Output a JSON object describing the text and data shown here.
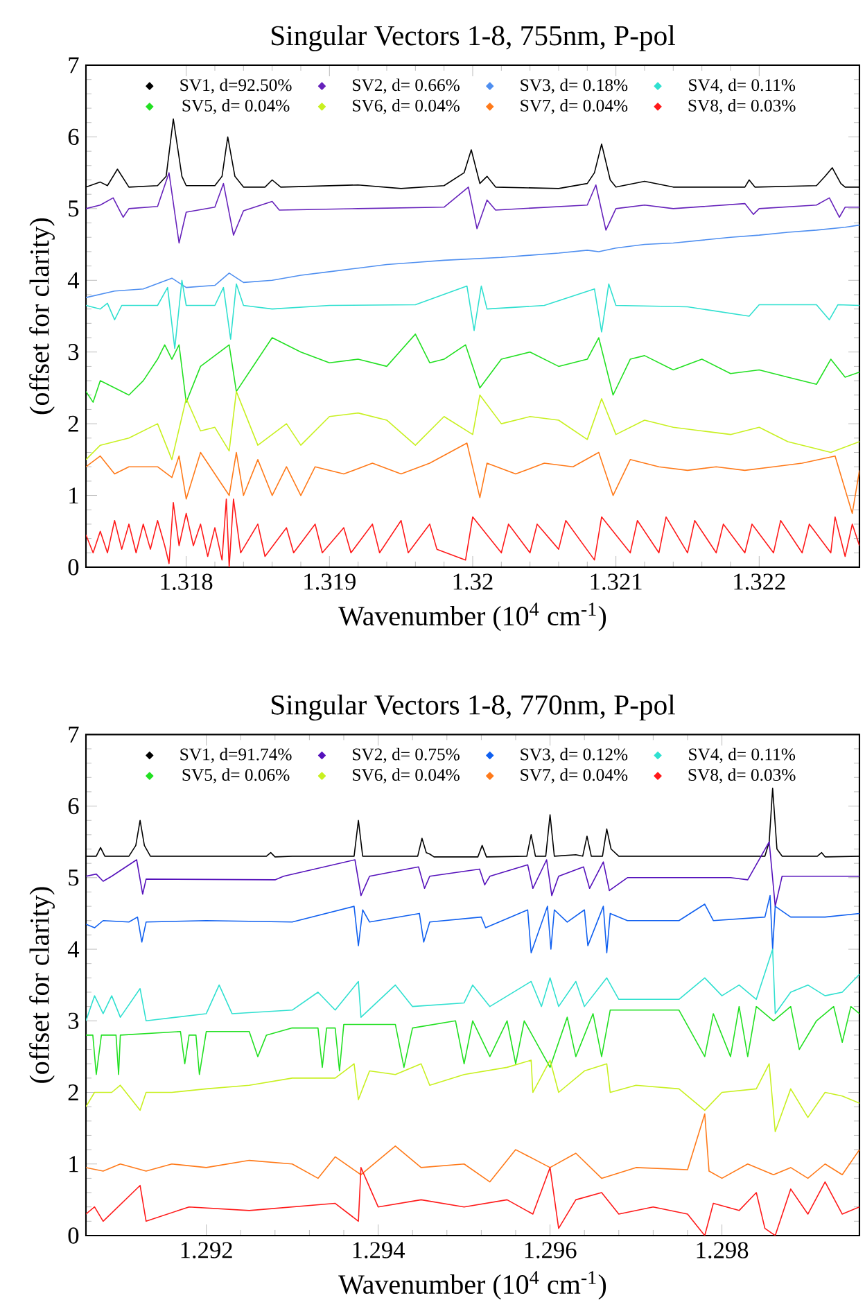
{
  "chart_data": [
    {
      "type": "line",
      "title": "Singular Vectors 1-8, 755nm, P-pol",
      "xlabel": "Wavenumber (10$^{4}$ cm$^{-1}$)",
      "ylabel": "(offset for clarity)",
      "xlim": [
        1.3173,
        1.3227
      ],
      "ylim": [
        0,
        7
      ],
      "xticks": [
        1.318,
        1.319,
        1.32,
        1.321,
        1.322
      ],
      "yticks": [
        0,
        1,
        2,
        3,
        4,
        5,
        6,
        7
      ],
      "legend": "top",
      "series": [
        {
          "name": "SV1, d=92.50%",
          "color": "#000000",
          "x": [
            1.3173,
            1.3174,
            1.31745,
            1.31752,
            1.3176,
            1.3178,
            1.31786,
            1.31791,
            1.31797,
            1.318,
            1.3182,
            1.31825,
            1.31829,
            1.31834,
            1.3184,
            1.31855,
            1.3186,
            1.31866,
            1.3192,
            1.3195,
            1.3198,
            1.31994,
            1.31999,
            1.32005,
            1.3201,
            1.32016,
            1.3206,
            1.3208,
            1.32085,
            1.3209,
            1.32096,
            1.321,
            1.3212,
            1.3214,
            1.3219,
            1.32193,
            1.32197,
            1.3224,
            1.32246,
            1.32251,
            1.32257,
            1.3226,
            1.3227
          ],
          "values": [
            5.3,
            5.37,
            5.32,
            5.55,
            5.3,
            5.32,
            5.45,
            6.25,
            5.45,
            5.32,
            5.32,
            5.45,
            6.0,
            5.45,
            5.3,
            5.3,
            5.4,
            5.3,
            5.33,
            5.28,
            5.32,
            5.5,
            5.82,
            5.35,
            5.45,
            5.3,
            5.28,
            5.35,
            5.5,
            5.9,
            5.4,
            5.3,
            5.38,
            5.3,
            5.3,
            5.4,
            5.3,
            5.32,
            5.45,
            5.57,
            5.35,
            5.3,
            5.3
          ]
        },
        {
          "name": "SV2, d= 0.66%",
          "color": "#6622bb",
          "x": [
            1.3173,
            1.3174,
            1.31749,
            1.31756,
            1.3176,
            1.3178,
            1.31788,
            1.31795,
            1.318,
            1.3182,
            1.31826,
            1.31833,
            1.3184,
            1.3186,
            1.31865,
            1.3192,
            1.3198,
            1.31997,
            1.32003,
            1.3201,
            1.32016,
            1.3208,
            1.32086,
            1.32093,
            1.321,
            1.3212,
            1.3214,
            1.3219,
            1.32196,
            1.322,
            1.3224,
            1.32249,
            1.32256,
            1.3226,
            1.3227
          ],
          "values": [
            5.0,
            5.05,
            5.15,
            4.88,
            5.0,
            5.03,
            5.5,
            4.52,
            4.95,
            5.02,
            5.35,
            4.63,
            4.97,
            5.1,
            4.98,
            5.0,
            5.02,
            5.3,
            4.72,
            5.12,
            4.98,
            5.05,
            5.33,
            4.7,
            5.0,
            5.05,
            5.0,
            5.07,
            4.92,
            5.0,
            5.05,
            5.15,
            4.88,
            5.02,
            5.02
          ]
        },
        {
          "name": "SV3, d= 0.18%",
          "color": "#4f8ff0",
          "x": [
            1.3173,
            1.3175,
            1.3177,
            1.3179,
            1.318,
            1.3182,
            1.3183,
            1.3184,
            1.3186,
            1.3188,
            1.319,
            1.3192,
            1.3194,
            1.3196,
            1.3198,
            1.32,
            1.3202,
            1.3204,
            1.3206,
            1.3208,
            1.32088,
            1.321,
            1.3212,
            1.3214,
            1.3216,
            1.3218,
            1.322,
            1.3222,
            1.3224,
            1.3226,
            1.3227
          ],
          "values": [
            3.76,
            3.85,
            3.88,
            4.03,
            3.9,
            3.93,
            4.1,
            3.97,
            4.0,
            4.07,
            4.12,
            4.17,
            4.22,
            4.25,
            4.28,
            4.3,
            4.32,
            4.35,
            4.38,
            4.42,
            4.4,
            4.45,
            4.5,
            4.52,
            4.56,
            4.6,
            4.63,
            4.67,
            4.7,
            4.74,
            4.77
          ]
        },
        {
          "name": "SV4, d= 0.11%",
          "color": "#30e0d0",
          "x": [
            1.3173,
            1.3174,
            1.31745,
            1.3175,
            1.31755,
            1.3178,
            1.31787,
            1.31792,
            1.31797,
            1.318,
            1.3182,
            1.31826,
            1.31831,
            1.31835,
            1.3184,
            1.3186,
            1.319,
            1.3196,
            1.31996,
            1.32001,
            1.32006,
            1.3201,
            1.3205,
            1.32085,
            1.3209,
            1.32095,
            1.321,
            1.3215,
            1.32193,
            1.322,
            1.3224,
            1.32249,
            1.32255,
            1.3227
          ],
          "values": [
            3.65,
            3.6,
            3.68,
            3.45,
            3.65,
            3.65,
            3.9,
            3.05,
            4.0,
            3.65,
            3.65,
            3.9,
            3.18,
            3.95,
            3.65,
            3.6,
            3.65,
            3.66,
            3.92,
            3.3,
            3.92,
            3.6,
            3.65,
            3.88,
            3.28,
            3.95,
            3.65,
            3.63,
            3.5,
            3.66,
            3.66,
            3.45,
            3.66,
            3.65
          ]
        },
        {
          "name": "SV5, d= 0.04%",
          "color": "#22e022",
          "x": [
            1.3173,
            1.31735,
            1.3174,
            1.3176,
            1.3177,
            1.3178,
            1.31785,
            1.3179,
            1.31795,
            1.318,
            1.3181,
            1.3182,
            1.3183,
            1.31835,
            1.3185,
            1.3186,
            1.3188,
            1.319,
            1.3192,
            1.3194,
            1.3196,
            1.3197,
            1.3198,
            1.31995,
            1.32005,
            1.3202,
            1.3204,
            1.3206,
            1.3208,
            1.32088,
            1.32098,
            1.3211,
            1.3212,
            1.3214,
            1.3216,
            1.3218,
            1.322,
            1.3222,
            1.3224,
            1.3225,
            1.3226,
            1.3227
          ],
          "values": [
            2.45,
            2.3,
            2.6,
            2.4,
            2.6,
            2.9,
            3.1,
            2.9,
            3.1,
            2.3,
            2.8,
            2.95,
            3.1,
            2.45,
            2.9,
            3.2,
            3.0,
            2.85,
            2.9,
            2.8,
            3.25,
            2.85,
            2.9,
            3.1,
            2.5,
            2.9,
            3.0,
            2.8,
            2.9,
            3.2,
            2.4,
            2.9,
            2.95,
            2.75,
            2.9,
            2.7,
            2.75,
            2.65,
            2.55,
            2.9,
            2.65,
            2.72
          ]
        },
        {
          "name": "SV6, d= 0.04%",
          "color": "#c8f020",
          "x": [
            1.3173,
            1.3174,
            1.3176,
            1.3178,
            1.3179,
            1.318,
            1.3181,
            1.3182,
            1.3183,
            1.31835,
            1.3185,
            1.3187,
            1.3188,
            1.319,
            1.3192,
            1.3194,
            1.3196,
            1.3198,
            1.32,
            1.32005,
            1.3202,
            1.3204,
            1.3206,
            1.3208,
            1.3209,
            1.321,
            1.3212,
            1.3214,
            1.3216,
            1.3218,
            1.322,
            1.3222,
            1.3224,
            1.3225,
            1.3227
          ],
          "values": [
            1.5,
            1.7,
            1.8,
            2.0,
            1.5,
            2.35,
            1.9,
            1.95,
            1.62,
            2.45,
            1.7,
            2.0,
            1.7,
            2.1,
            2.15,
            2.05,
            1.7,
            2.1,
            1.85,
            2.4,
            2.0,
            2.1,
            2.05,
            1.78,
            2.35,
            1.85,
            2.05,
            1.95,
            1.9,
            1.85,
            1.95,
            1.75,
            1.65,
            1.6,
            1.75
          ]
        },
        {
          "name": "SV7, d= 0.04%",
          "color": "#ff7a1a",
          "x": [
            1.3173,
            1.3174,
            1.3175,
            1.3176,
            1.3178,
            1.3179,
            1.31795,
            1.318,
            1.3181,
            1.3182,
            1.3183,
            1.31835,
            1.3184,
            1.3185,
            1.3186,
            1.3187,
            1.3188,
            1.3189,
            1.3191,
            1.3193,
            1.3195,
            1.3197,
            1.31996,
            1.32005,
            1.3201,
            1.3203,
            1.3205,
            1.3207,
            1.32088,
            1.32098,
            1.3211,
            1.3213,
            1.3215,
            1.3217,
            1.3219,
            1.3221,
            1.3223,
            1.32253,
            1.32265,
            1.3227
          ],
          "values": [
            1.4,
            1.55,
            1.3,
            1.4,
            1.4,
            1.25,
            1.55,
            0.95,
            1.6,
            1.3,
            1.0,
            1.6,
            1.0,
            1.5,
            1.0,
            1.4,
            1.0,
            1.4,
            1.3,
            1.45,
            1.3,
            1.45,
            1.73,
            0.97,
            1.45,
            1.3,
            1.45,
            1.4,
            1.6,
            1.0,
            1.5,
            1.4,
            1.35,
            1.4,
            1.35,
            1.4,
            1.45,
            1.55,
            0.75,
            1.35
          ]
        },
        {
          "name": "SV8, d= 0.03%",
          "color": "#ff1a1a",
          "x": [
            1.3173,
            1.31735,
            1.3174,
            1.31745,
            1.3175,
            1.31755,
            1.3176,
            1.31765,
            1.3177,
            1.31775,
            1.3178,
            1.31785,
            1.31788,
            1.31791,
            1.31795,
            1.318,
            1.31805,
            1.3181,
            1.31815,
            1.3182,
            1.31825,
            1.31828,
            1.3183,
            1.31833,
            1.31838,
            1.3185,
            1.31855,
            1.3187,
            1.31875,
            1.3189,
            1.31895,
            1.3191,
            1.31915,
            1.3193,
            1.31935,
            1.3195,
            1.31955,
            1.3197,
            1.31975,
            1.31995,
            1.32,
            1.3202,
            1.32025,
            1.3204,
            1.32045,
            1.3206,
            1.32065,
            1.32085,
            1.3209,
            1.3211,
            1.32115,
            1.3213,
            1.32135,
            1.3215,
            1.32155,
            1.3217,
            1.32175,
            1.3219,
            1.32195,
            1.3221,
            1.32215,
            1.3223,
            1.32235,
            1.3225,
            1.32253,
            1.3226,
            1.32265,
            1.3227
          ],
          "values": [
            0.45,
            0.2,
            0.5,
            0.2,
            0.65,
            0.25,
            0.6,
            0.2,
            0.6,
            0.25,
            0.65,
            0.3,
            0.05,
            0.9,
            0.3,
            0.75,
            0.3,
            0.6,
            0.15,
            0.55,
            0.1,
            0.95,
            0.0,
            0.95,
            0.2,
            0.6,
            0.15,
            0.55,
            0.2,
            0.6,
            0.2,
            0.55,
            0.2,
            0.6,
            0.2,
            0.65,
            0.2,
            0.6,
            0.25,
            0.1,
            0.7,
            0.2,
            0.6,
            0.2,
            0.6,
            0.25,
            0.65,
            0.1,
            0.7,
            0.2,
            0.65,
            0.2,
            0.7,
            0.2,
            0.65,
            0.2,
            0.6,
            0.2,
            0.6,
            0.2,
            0.65,
            0.2,
            0.6,
            0.2,
            0.7,
            0.15,
            0.6,
            0.3
          ]
        }
      ]
    },
    {
      "type": "line",
      "title": "Singular Vectors 1-8, 770nm, P-pol",
      "xlabel": "Wavenumber (10$^{4}$ cm$^{-1}$)",
      "ylabel": "(offset for clarity)",
      "xlim": [
        1.2906,
        1.2996
      ],
      "ylim": [
        0,
        7
      ],
      "xticks": [
        1.292,
        1.294,
        1.296,
        1.298
      ],
      "yticks": [
        0,
        1,
        2,
        3,
        4,
        5,
        6,
        7
      ],
      "legend": "top",
      "series": [
        {
          "name": "SV1, d=91.74%",
          "color": "#000000",
          "x": [
            1.2906,
            1.29072,
            1.29077,
            1.29082,
            1.2911,
            1.29118,
            1.29123,
            1.29128,
            1.29135,
            1.2927,
            1.29275,
            1.2928,
            1.293,
            1.29372,
            1.29377,
            1.29382,
            1.29446,
            1.29451,
            1.29456,
            1.2946,
            1.29465,
            1.29516,
            1.29521,
            1.29526,
            1.29573,
            1.29578,
            1.29583,
            1.29595,
            1.296,
            1.29605,
            1.2963,
            1.29638,
            1.29643,
            1.29648,
            1.29661,
            1.29666,
            1.29671,
            1.2968,
            1.2985,
            1.29855,
            1.29859,
            1.29864,
            1.2987,
            1.29911,
            1.29916,
            1.2992,
            1.2996
          ],
          "values": [
            5.3,
            5.3,
            5.42,
            5.3,
            5.3,
            5.45,
            5.8,
            5.45,
            5.3,
            5.3,
            5.35,
            5.29,
            5.3,
            5.3,
            5.8,
            5.3,
            5.3,
            5.55,
            5.35,
            5.33,
            5.29,
            5.29,
            5.45,
            5.29,
            5.3,
            5.6,
            5.3,
            5.3,
            5.88,
            5.3,
            5.32,
            5.3,
            5.58,
            5.3,
            5.3,
            5.68,
            5.4,
            5.3,
            5.3,
            5.5,
            6.25,
            5.4,
            5.3,
            5.3,
            5.35,
            5.29,
            5.3
          ]
        },
        {
          "name": "SV2, d= 0.75%",
          "color": "#5511bb",
          "x": [
            1.2906,
            1.29072,
            1.2908,
            1.2909,
            1.29119,
            1.29126,
            1.2913,
            1.2928,
            1.2929,
            1.29373,
            1.2938,
            1.2939,
            1.29447,
            1.29454,
            1.2946,
            1.29518,
            1.29524,
            1.2953,
            1.29574,
            1.2958,
            1.29596,
            1.29602,
            1.2961,
            1.29639,
            1.29646,
            1.29662,
            1.29669,
            1.2969,
            1.2981,
            1.2983,
            1.29855,
            1.29862,
            1.2987,
            1.2996
          ],
          "values": [
            5.02,
            5.05,
            4.95,
            5.02,
            5.25,
            4.77,
            4.98,
            4.97,
            5.02,
            5.25,
            4.75,
            5.02,
            5.15,
            4.85,
            5.02,
            5.12,
            4.9,
            5.02,
            5.18,
            4.85,
            5.25,
            4.75,
            5.02,
            5.15,
            4.85,
            5.22,
            4.82,
            5.0,
            5.0,
            4.97,
            5.5,
            4.6,
            5.02,
            5.02
          ]
        },
        {
          "name": "SV3, d= 0.12%",
          "color": "#1060f0",
          "x": [
            1.2906,
            1.2907,
            1.2908,
            1.2911,
            1.2912,
            1.29125,
            1.2913,
            1.292,
            1.293,
            1.29372,
            1.29377,
            1.29382,
            1.2939,
            1.29448,
            1.29453,
            1.2946,
            1.2952,
            1.29525,
            1.29574,
            1.29578,
            1.29597,
            1.29601,
            1.29605,
            1.2962,
            1.2964,
            1.29644,
            1.29662,
            1.29666,
            1.2967,
            1.2969,
            1.2975,
            1.2978,
            1.2979,
            1.2985,
            1.29856,
            1.29859,
            1.29862,
            1.2988,
            1.2992,
            1.2996
          ],
          "values": [
            4.35,
            4.3,
            4.4,
            4.38,
            4.45,
            4.1,
            4.38,
            4.4,
            4.38,
            4.6,
            4.05,
            4.55,
            4.38,
            4.5,
            4.1,
            4.38,
            4.45,
            4.3,
            4.55,
            3.95,
            4.6,
            4.0,
            4.55,
            4.38,
            4.55,
            4.05,
            4.6,
            3.95,
            4.5,
            4.4,
            4.4,
            4.63,
            4.4,
            4.45,
            4.75,
            4.0,
            4.6,
            4.45,
            4.45,
            4.5
          ]
        },
        {
          "name": "SV4, d= 0.11%",
          "color": "#30e0d0",
          "x": [
            1.2906,
            1.2907,
            1.2908,
            1.2909,
            1.291,
            1.29123,
            1.2913,
            1.292,
            1.29215,
            1.2923,
            1.293,
            1.2933,
            1.2935,
            1.29377,
            1.2938,
            1.2942,
            1.2944,
            1.295,
            1.2951,
            1.2953,
            1.29578,
            1.2959,
            1.296,
            1.2961,
            1.2963,
            1.2964,
            1.29666,
            1.2968,
            1.2975,
            1.2978,
            1.298,
            1.2982,
            1.2984,
            1.29859,
            1.29862,
            1.2988,
            1.299,
            1.2992,
            1.2994,
            1.2996
          ],
          "values": [
            3.0,
            3.35,
            3.1,
            3.35,
            3.05,
            3.45,
            3.0,
            3.1,
            3.5,
            3.1,
            3.15,
            3.4,
            3.15,
            3.55,
            3.05,
            3.5,
            3.2,
            3.25,
            3.5,
            3.2,
            3.55,
            3.2,
            3.6,
            3.2,
            3.55,
            3.2,
            3.6,
            3.3,
            3.3,
            3.6,
            3.35,
            3.5,
            3.3,
            4.0,
            3.1,
            3.4,
            3.5,
            3.35,
            3.4,
            3.65
          ]
        },
        {
          "name": "SV5, d= 0.06%",
          "color": "#22e022",
          "x": [
            1.2906,
            1.29068,
            1.29072,
            1.29078,
            1.29095,
            1.29098,
            1.291,
            1.2917,
            1.29175,
            1.2918,
            1.29188,
            1.29192,
            1.292,
            1.2925,
            1.2926,
            1.2927,
            1.293,
            1.2933,
            1.29335,
            1.2934,
            1.2935,
            1.29355,
            1.2936,
            1.2942,
            1.2943,
            1.2944,
            1.2949,
            1.295,
            1.2951,
            1.2953,
            1.2955,
            1.2956,
            1.2957,
            1.296,
            1.2962,
            1.2963,
            1.2965,
            1.2966,
            1.2967,
            1.2975,
            1.2978,
            1.2979,
            1.2981,
            1.2982,
            1.2983,
            1.2984,
            1.2986,
            1.2988,
            1.2989,
            1.2991,
            1.2993,
            1.2994,
            1.2995,
            1.2996
          ],
          "values": [
            2.8,
            2.8,
            2.25,
            2.8,
            2.8,
            2.25,
            2.8,
            2.85,
            2.4,
            2.8,
            2.8,
            2.25,
            2.85,
            2.85,
            2.5,
            2.8,
            2.9,
            2.9,
            2.35,
            2.9,
            2.9,
            2.3,
            2.95,
            2.95,
            2.35,
            2.9,
            3.0,
            2.4,
            3.0,
            2.5,
            3.0,
            2.4,
            3.0,
            2.35,
            3.05,
            2.5,
            3.1,
            2.5,
            3.15,
            3.15,
            2.5,
            3.1,
            2.5,
            3.2,
            2.5,
            3.2,
            3.0,
            3.2,
            2.6,
            3.0,
            3.2,
            2.7,
            3.2,
            3.1
          ]
        },
        {
          "name": "SV6, d= 0.04%",
          "color": "#c8f020",
          "x": [
            1.2906,
            1.2907,
            1.2909,
            1.291,
            1.29123,
            1.2913,
            1.2916,
            1.292,
            1.2925,
            1.293,
            1.2935,
            1.29372,
            1.29377,
            1.2939,
            1.2942,
            1.2945,
            1.2946,
            1.295,
            1.2955,
            1.29578,
            1.2958,
            1.296,
            1.2961,
            1.2964,
            1.29666,
            1.2967,
            1.297,
            1.2975,
            1.2978,
            1.298,
            1.2984,
            1.29855,
            1.29862,
            1.2988,
            1.299,
            1.2992,
            1.2994,
            1.2996
          ],
          "values": [
            1.8,
            2.0,
            2.0,
            2.1,
            1.75,
            2.0,
            2.0,
            2.05,
            2.1,
            2.2,
            2.2,
            2.4,
            1.9,
            2.3,
            2.25,
            2.4,
            2.1,
            2.25,
            2.35,
            2.45,
            2.0,
            2.45,
            2.0,
            2.3,
            2.4,
            2.0,
            2.1,
            2.05,
            1.75,
            2.0,
            2.05,
            2.4,
            1.45,
            2.05,
            1.65,
            2.0,
            1.95,
            1.85
          ]
        },
        {
          "name": "SV7, d= 0.04%",
          "color": "#ff7a1a",
          "x": [
            1.2906,
            1.2908,
            1.291,
            1.2913,
            1.2916,
            1.292,
            1.2925,
            1.293,
            1.2933,
            1.2935,
            1.2938,
            1.2942,
            1.2945,
            1.295,
            1.2953,
            1.2956,
            1.296,
            1.2963,
            1.2966,
            1.297,
            1.2976,
            1.2978,
            1.29785,
            1.298,
            1.2983,
            1.2986,
            1.2988,
            1.299,
            1.2992,
            1.2994,
            1.2996
          ],
          "values": [
            0.95,
            0.9,
            1.0,
            0.9,
            1.0,
            0.95,
            1.05,
            1.0,
            0.8,
            1.1,
            0.85,
            1.25,
            0.95,
            1.0,
            0.75,
            1.2,
            0.95,
            1.15,
            0.8,
            0.95,
            0.92,
            1.7,
            0.9,
            0.8,
            1.0,
            0.85,
            0.95,
            0.8,
            1.0,
            0.85,
            1.2
          ]
        },
        {
          "name": "SV8, d= 0.03%",
          "color": "#ff1a1a",
          "x": [
            1.2906,
            1.2907,
            1.2908,
            1.29123,
            1.2913,
            1.2918,
            1.2925,
            1.293,
            1.2935,
            1.29377,
            1.2938,
            1.294,
            1.2945,
            1.295,
            1.2955,
            1.2958,
            1.296,
            1.2961,
            1.2963,
            1.2966,
            1.2968,
            1.2972,
            1.2976,
            1.2978,
            1.2979,
            1.2982,
            1.2984,
            1.2985,
            1.29862,
            1.2988,
            1.299,
            1.2992,
            1.2994,
            1.2996
          ],
          "values": [
            0.3,
            0.4,
            0.2,
            0.7,
            0.2,
            0.4,
            0.35,
            0.4,
            0.45,
            0.2,
            0.95,
            0.4,
            0.5,
            0.4,
            0.5,
            0.3,
            0.95,
            0.1,
            0.5,
            0.6,
            0.3,
            0.4,
            0.3,
            0.0,
            0.45,
            0.35,
            0.6,
            0.1,
            0.0,
            0.65,
            0.3,
            0.75,
            0.3,
            0.4
          ]
        }
      ]
    }
  ]
}
